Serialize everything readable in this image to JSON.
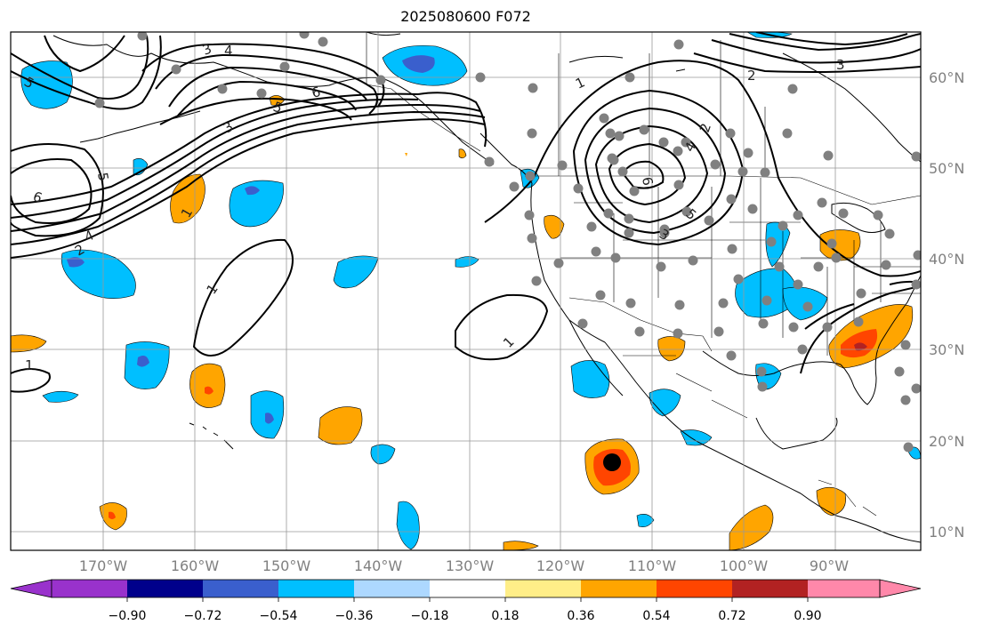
{
  "title": "2025080600 F072",
  "lon_labels": [
    "170°W",
    "160°W",
    "150°W",
    "140°W",
    "130°W",
    "120°W",
    "110°W",
    "100°W",
    "90°W"
  ],
  "lat_labels": [
    "60°N",
    "50°N",
    "40°N",
    "30°N",
    "20°N",
    "10°N"
  ],
  "colorbar": {
    "ticks": [
      "−0.90",
      "−0.72",
      "−0.54",
      "−0.36",
      "−0.18",
      "0.18",
      "0.36",
      "0.54",
      "0.72",
      "0.90"
    ],
    "colors": [
      "#9932cc",
      "#00008b",
      "#3a5fcd",
      "#00bfff",
      "#add8ff",
      "#ffffff",
      "#ffee88",
      "#ffa500",
      "#ff4500",
      "#b22222",
      "#ff88aa"
    ]
  },
  "contour_labels": [
    "1",
    "1",
    "1",
    "1",
    "1",
    "2",
    "2",
    "2",
    "3",
    "3",
    "3",
    "3",
    "4",
    "4",
    "4",
    "5",
    "5",
    "5",
    "5",
    "6",
    "6",
    "6"
  ],
  "colors": {
    "frame": "#000000",
    "grid": "#999999",
    "contour": "#000000",
    "station": "#808080",
    "marker": "#000000"
  }
}
